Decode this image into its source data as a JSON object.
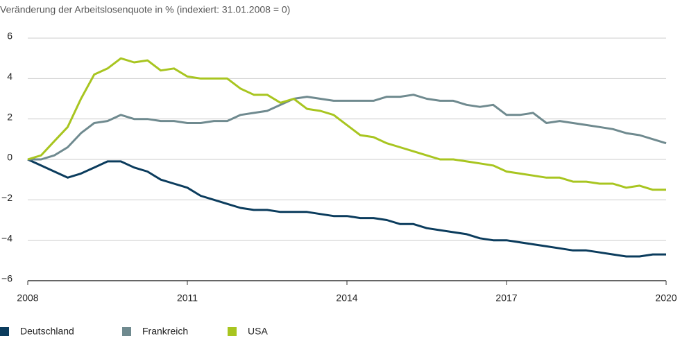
{
  "chart_data": {
    "type": "line",
    "title": "Veränderung der Arbeitslosenquote in % (indexiert: 31.01.2008 = 0)",
    "x": [
      2008,
      2008.25,
      2008.5,
      2008.75,
      2009,
      2009.25,
      2009.5,
      2009.75,
      2010,
      2010.25,
      2010.5,
      2010.75,
      2011,
      2011.25,
      2011.5,
      2011.75,
      2012,
      2012.25,
      2012.5,
      2012.75,
      2013,
      2013.25,
      2013.5,
      2013.75,
      2014,
      2014.25,
      2014.5,
      2014.75,
      2015,
      2015.25,
      2015.5,
      2015.75,
      2016,
      2016.25,
      2016.5,
      2016.75,
      2017,
      2017.25,
      2017.5,
      2017.75,
      2018,
      2018.25,
      2018.5,
      2018.75,
      2019,
      2019.25,
      2019.5,
      2019.75,
      2020
    ],
    "series": [
      {
        "name": "Deutschland",
        "color": "#0b3c5d",
        "values": [
          0,
          -0.3,
          -0.6,
          -0.9,
          -0.7,
          -0.4,
          -0.1,
          -0.1,
          -0.4,
          -0.6,
          -1.0,
          -1.2,
          -1.4,
          -1.8,
          -2.0,
          -2.2,
          -2.4,
          -2.5,
          -2.5,
          -2.6,
          -2.6,
          -2.6,
          -2.7,
          -2.8,
          -2.8,
          -2.9,
          -2.9,
          -3.0,
          -3.2,
          -3.2,
          -3.4,
          -3.5,
          -3.6,
          -3.7,
          -3.9,
          -4.0,
          -4.0,
          -4.1,
          -4.2,
          -4.3,
          -4.4,
          -4.5,
          -4.5,
          -4.6,
          -4.7,
          -4.8,
          -4.8,
          -4.7,
          -4.7
        ]
      },
      {
        "name": "Frankreich",
        "color": "#6f8a8f",
        "values": [
          0,
          0,
          0.2,
          0.6,
          1.3,
          1.8,
          1.9,
          2.2,
          2.0,
          2.0,
          1.9,
          1.9,
          1.8,
          1.8,
          1.9,
          1.9,
          2.2,
          2.3,
          2.4,
          2.7,
          3.0,
          3.1,
          3.0,
          2.9,
          2.9,
          2.9,
          2.9,
          3.1,
          3.1,
          3.2,
          3.0,
          2.9,
          2.9,
          2.7,
          2.6,
          2.7,
          2.2,
          2.2,
          2.3,
          1.8,
          1.9,
          1.8,
          1.7,
          1.6,
          1.5,
          1.3,
          1.2,
          1.0,
          0.8
        ]
      },
      {
        "name": "USA",
        "color": "#a8c520",
        "values": [
          0,
          0.2,
          0.9,
          1.6,
          3.0,
          4.2,
          4.5,
          5.0,
          4.8,
          4.9,
          4.4,
          4.5,
          4.1,
          4.0,
          4.0,
          4.0,
          3.5,
          3.2,
          3.2,
          2.8,
          3.0,
          2.5,
          2.4,
          2.2,
          1.7,
          1.2,
          1.1,
          0.8,
          0.6,
          0.4,
          0.2,
          0.0,
          0.0,
          -0.1,
          -0.2,
          -0.3,
          -0.6,
          -0.7,
          -0.8,
          -0.9,
          -0.9,
          -1.1,
          -1.1,
          -1.2,
          -1.2,
          -1.4,
          -1.3,
          -1.5,
          -1.5
        ]
      }
    ],
    "xlim": [
      2008,
      2020
    ],
    "xticks": [
      2008,
      2011,
      2014,
      2017,
      2020
    ],
    "ylim": [
      -6,
      6
    ],
    "yticks": [
      {
        "value": -6,
        "label": "−6"
      },
      {
        "value": -4,
        "label": "−4"
      },
      {
        "value": -2,
        "label": "−2"
      },
      0,
      2,
      4,
      6
    ],
    "grid": true,
    "legend": "bottom"
  }
}
